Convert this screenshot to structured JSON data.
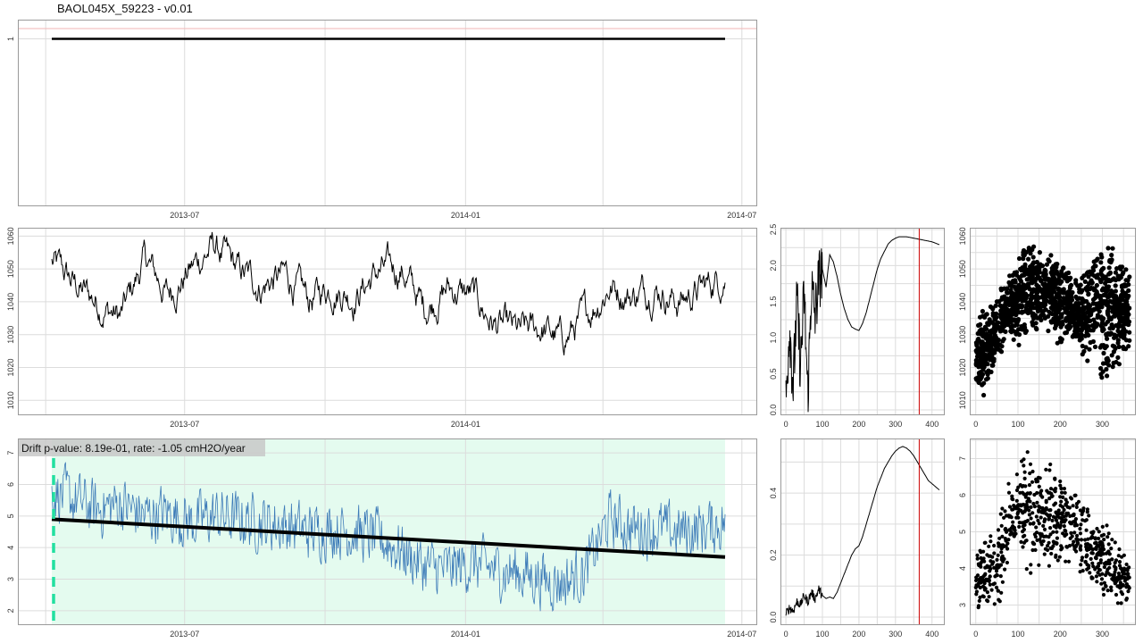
{
  "title": "BAOL045X_59223 - v0.01",
  "colors": {
    "panel_border": "#9a9a9a",
    "grid": "#dcdcdc",
    "series": "#000000",
    "drift_series": "#3d7bb8",
    "drift_trend": "#000000",
    "drift_background": "#e4fbef",
    "drift_marker": "#22e0a0",
    "reference_line": "#cc0000",
    "top_ref": "#f2b6b6"
  },
  "chart_data": [
    {
      "id": "status",
      "type": "line",
      "x_ticks": [
        "2013-07",
        "2014-01",
        "2014-07"
      ],
      "y_ticks": [
        "1"
      ],
      "x_range": [
        "2013-04-05",
        "2014-06-20"
      ],
      "series": [
        {
          "x": [
            "2013-04-05",
            "2014-06-20"
          ],
          "values": [
            1,
            1
          ]
        }
      ],
      "grid": true
    },
    {
      "id": "pressure_timeseries",
      "type": "line",
      "x_ticks": [
        "2013-07",
        "2014-01"
      ],
      "y_ticks": [
        "1010",
        "1020",
        "1030",
        "1040",
        "1050",
        "1060"
      ],
      "ylim": [
        1006,
        1062
      ],
      "x_range": [
        "2013-04-05",
        "2014-06-20"
      ],
      "series": [
        {
          "x": [
            "2013-04-05",
            "2013-04-20",
            "2013-05-05",
            "2013-05-20",
            "2013-06-05",
            "2013-06-20",
            "2013-07-05",
            "2013-07-20",
            "2013-08-05",
            "2013-08-20",
            "2013-09-05",
            "2013-09-20",
            "2013-10-05",
            "2013-10-20",
            "2013-11-05",
            "2013-11-20",
            "2013-12-05",
            "2013-12-20",
            "2014-01-05",
            "2014-01-20",
            "2014-02-05",
            "2014-02-20",
            "2014-03-05",
            "2014-03-20",
            "2014-04-05",
            "2014-04-20",
            "2014-05-05",
            "2014-05-20",
            "2014-06-05",
            "2014-06-20"
          ],
          "values": [
            1052,
            1045,
            1040,
            1035,
            1053,
            1042,
            1050,
            1057,
            1049,
            1045,
            1048,
            1040,
            1045,
            1042,
            1049,
            1050,
            1038,
            1044,
            1042,
            1033,
            1030,
            1032,
            1028,
            1035,
            1045,
            1042,
            1045,
            1040,
            1044,
            1048
          ]
        }
      ],
      "grid": true
    },
    {
      "id": "pressure_acf",
      "type": "line",
      "x_ticks": [
        "0",
        "100",
        "200",
        "300",
        "400"
      ],
      "y_ticks": [
        "0.0",
        "0.5",
        "1.0",
        "1.5",
        "2.0",
        "2.5"
      ],
      "xlim": [
        -10,
        430
      ],
      "ylim": [
        -0.05,
        2.5
      ],
      "series": [
        {
          "x": [
            0,
            10,
            20,
            30,
            40,
            50,
            60,
            70,
            80,
            90,
            100,
            110,
            120,
            130,
            140,
            150,
            160,
            170,
            180,
            190,
            200,
            210,
            220,
            230,
            240,
            250,
            260,
            270,
            280,
            290,
            300,
            310,
            320,
            330,
            340,
            350,
            360,
            370,
            380,
            390,
            400,
            410,
            420
          ],
          "values": [
            0.1,
            1.2,
            0.3,
            1.5,
            0.6,
            1.6,
            0.2,
            1.7,
            1.3,
            1.8,
            1.95,
            1.7,
            2.15,
            2.05,
            1.85,
            1.6,
            1.4,
            1.25,
            1.15,
            1.12,
            1.1,
            1.2,
            1.35,
            1.55,
            1.75,
            1.95,
            2.1,
            2.2,
            2.3,
            2.35,
            2.38,
            2.4,
            2.4,
            2.4,
            2.39,
            2.38,
            2.37,
            2.36,
            2.35,
            2.34,
            2.33,
            2.31,
            2.29
          ]
        }
      ],
      "reference_x": 365,
      "grid": true
    },
    {
      "id": "pressure_scatter",
      "type": "scatter",
      "x_ticks": [
        "0",
        "100",
        "200",
        "300"
      ],
      "y_ticks": [
        "1010",
        "1020",
        "1030",
        "1040",
        "1050",
        "1060"
      ],
      "xlim": [
        -10,
        375
      ],
      "ylim": [
        1006,
        1062
      ],
      "band": {
        "x": [
          0,
          20,
          40,
          60,
          80,
          100,
          120,
          140,
          160,
          180,
          200,
          220,
          240,
          260,
          280,
          300,
          320,
          340,
          360
        ],
        "low": [
          1012,
          1010,
          1018,
          1022,
          1030,
          1025,
          1030,
          1028,
          1032,
          1030,
          1025,
          1030,
          1026,
          1020,
          1024,
          1010,
          1015,
          1020,
          1025
        ],
        "high": [
          1035,
          1038,
          1040,
          1045,
          1050,
          1055,
          1060,
          1058,
          1056,
          1055,
          1052,
          1050,
          1048,
          1050,
          1055,
          1060,
          1062,
          1055,
          1050
        ]
      },
      "grid": true
    },
    {
      "id": "drift",
      "type": "line",
      "annotation": "Drift p-value: 8.19e-01, rate: -1.05 cmH2O/year",
      "x_ticks": [
        "2013-07",
        "2014-01",
        "2014-07"
      ],
      "y_ticks": [
        "2",
        "3",
        "4",
        "5",
        "6",
        "7"
      ],
      "ylim": [
        1.6,
        7.4
      ],
      "x_range": [
        "2013-04-05",
        "2014-06-20"
      ],
      "series": [
        {
          "x": [
            "2013-04-05",
            "2013-04-20",
            "2013-05-05",
            "2013-05-20",
            "2013-06-05",
            "2013-06-20",
            "2013-07-05",
            "2013-07-20",
            "2013-08-05",
            "2013-08-20",
            "2013-09-05",
            "2013-09-20",
            "2013-10-05",
            "2013-10-20",
            "2013-11-05",
            "2013-11-20",
            "2013-12-05",
            "2013-12-20",
            "2014-01-05",
            "2014-01-20",
            "2014-02-05",
            "2014-02-20",
            "2014-03-05",
            "2014-03-20",
            "2014-04-05",
            "2014-04-20",
            "2014-05-05",
            "2014-05-20",
            "2014-06-05",
            "2014-06-20"
          ],
          "values": [
            5.8,
            5.5,
            5.2,
            5.4,
            5.0,
            5.1,
            4.8,
            5.0,
            4.9,
            4.8,
            4.7,
            4.5,
            4.6,
            4.5,
            4.3,
            3.9,
            3.4,
            3.3,
            3.5,
            3.3,
            3.2,
            3.0,
            2.9,
            3.2,
            4.9,
            4.6,
            4.6,
            4.5,
            4.6,
            4.8
          ]
        },
        {
          "x": [
            "2013-04-05",
            "2014-06-20"
          ],
          "values": [
            4.9,
            3.7
          ]
        }
      ],
      "grid": true
    },
    {
      "id": "drift_acf",
      "type": "line",
      "x_ticks": [
        "0",
        "100",
        "200",
        "300",
        "400"
      ],
      "y_ticks": [
        "0.0",
        "0.2",
        "0.4"
      ],
      "xlim": [
        -10,
        430
      ],
      "ylim": [
        -0.02,
        0.57
      ],
      "series": [
        {
          "x": [
            0,
            10,
            20,
            30,
            40,
            50,
            60,
            70,
            80,
            90,
            100,
            110,
            120,
            130,
            140,
            150,
            160,
            170,
            180,
            190,
            200,
            210,
            220,
            230,
            240,
            250,
            260,
            270,
            280,
            290,
            300,
            310,
            320,
            330,
            340,
            350,
            360,
            370,
            380,
            390,
            400,
            410,
            420
          ],
          "values": [
            0.01,
            0.03,
            0.02,
            0.05,
            0.04,
            0.07,
            0.05,
            0.08,
            0.06,
            0.09,
            0.07,
            0.06,
            0.065,
            0.06,
            0.08,
            0.11,
            0.14,
            0.17,
            0.2,
            0.22,
            0.23,
            0.26,
            0.3,
            0.34,
            0.38,
            0.42,
            0.45,
            0.48,
            0.5,
            0.52,
            0.535,
            0.545,
            0.55,
            0.545,
            0.535,
            0.52,
            0.5,
            0.48,
            0.46,
            0.44,
            0.43,
            0.42,
            0.41
          ]
        }
      ],
      "reference_x": 365,
      "grid": true
    },
    {
      "id": "drift_scatter",
      "type": "scatter",
      "x_ticks": [
        "0",
        "100",
        "200",
        "300"
      ],
      "y_ticks": [
        "3",
        "4",
        "5",
        "6",
        "7"
      ],
      "xlim": [
        -10,
        375
      ],
      "ylim": [
        2.5,
        7.5
      ],
      "band": {
        "x": [
          0,
          20,
          40,
          60,
          80,
          100,
          120,
          140,
          160,
          180,
          200,
          220,
          240,
          260,
          280,
          300,
          320,
          340,
          360
        ],
        "low": [
          2.9,
          2.7,
          2.7,
          3.0,
          4.2,
          4.5,
          3.8,
          3.7,
          3.8,
          3.9,
          4.0,
          4.0,
          3.9,
          3.5,
          3.4,
          3.2,
          2.9,
          2.8,
          2.9
        ],
        "high": [
          4.5,
          4.8,
          5.2,
          5.8,
          6.5,
          7.0,
          7.2,
          7.4,
          7.2,
          7.0,
          6.8,
          6.5,
          6.2,
          5.8,
          5.6,
          5.4,
          5.0,
          4.8,
          4.5
        ]
      },
      "grid": true
    }
  ]
}
